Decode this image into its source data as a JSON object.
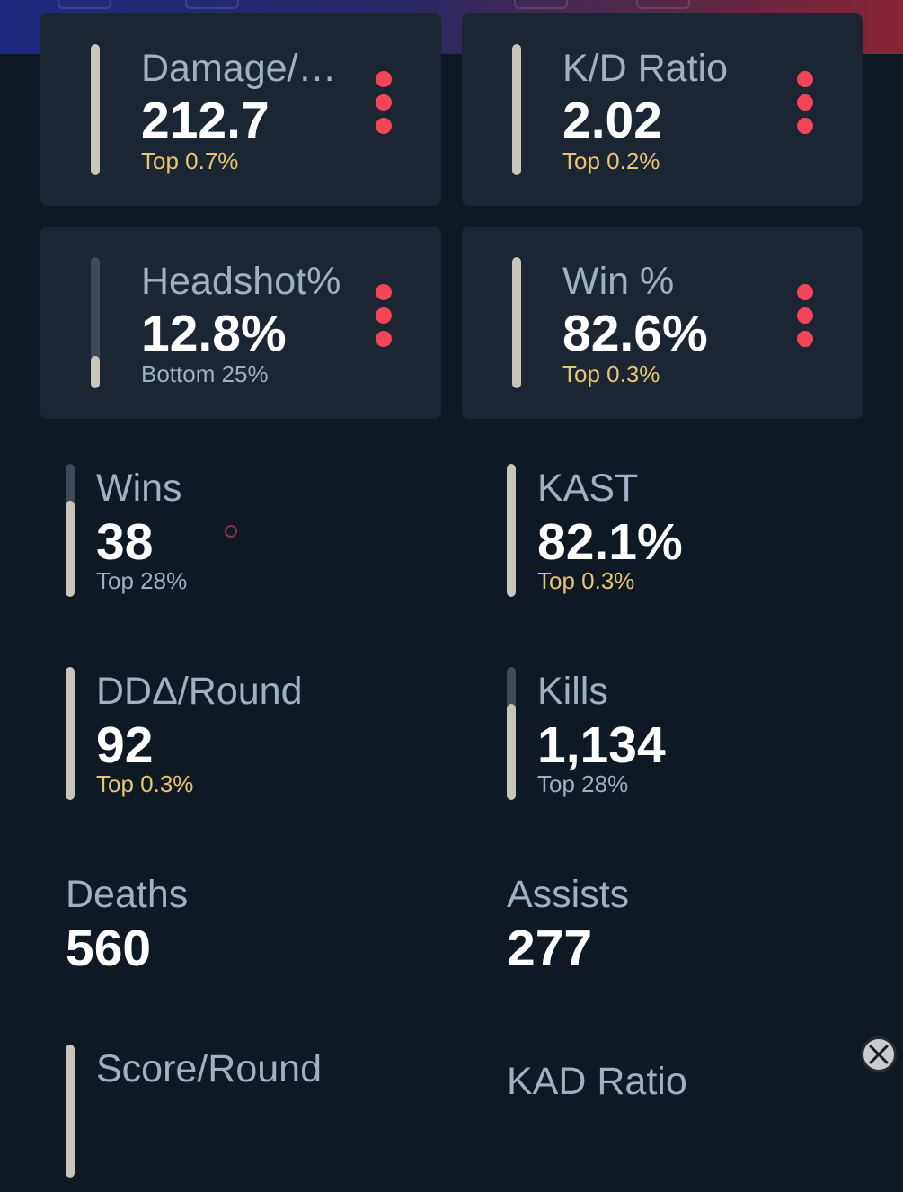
{
  "cards": [
    {
      "label": "Damage/Round",
      "value": "212.7",
      "rank": "Top 0.7%",
      "rank_type": "top",
      "fill": 1.0
    },
    {
      "label": "K/D Ratio",
      "value": "2.02",
      "rank": "Top 0.2%",
      "rank_type": "top",
      "fill": 1.0
    },
    {
      "label": "Headshot%",
      "value": "12.8%",
      "rank": "Bottom 25%",
      "rank_type": "bottom",
      "fill": 0.25
    },
    {
      "label": "Win %",
      "value": "82.6%",
      "rank": "Top 0.3%",
      "rank_type": "top",
      "fill": 1.0
    }
  ],
  "stats": [
    {
      "label": "Wins",
      "value": "38",
      "rank": "Top 28%",
      "rank_type": "bottom",
      "fill": 0.72
    },
    {
      "label": "KAST",
      "value": "82.1%",
      "rank": "Top 0.3%",
      "rank_type": "top",
      "fill": 1.0
    },
    {
      "label": "DDΔ/Round",
      "value": "92",
      "rank": "Top 0.3%",
      "rank_type": "top",
      "fill": 1.0
    },
    {
      "label": "Kills",
      "value": "1,134",
      "rank": "Top 28%",
      "rank_type": "bottom",
      "fill": 0.72
    },
    {
      "label": "Deaths",
      "value": "560"
    },
    {
      "label": "Assists",
      "value": "277"
    },
    {
      "label": "Score/Round",
      "fill": 1.0
    },
    {
      "label": "KAD Ratio"
    }
  ],
  "colors": {
    "accent_menu": "#f2455a",
    "rank_top": "#e6c574",
    "rank_bottom": "#9fb0c2",
    "bar_fill": "#c9c4bc"
  },
  "icons": {
    "menu": "kebab-menu-icon",
    "close": "close-circle-icon"
  }
}
